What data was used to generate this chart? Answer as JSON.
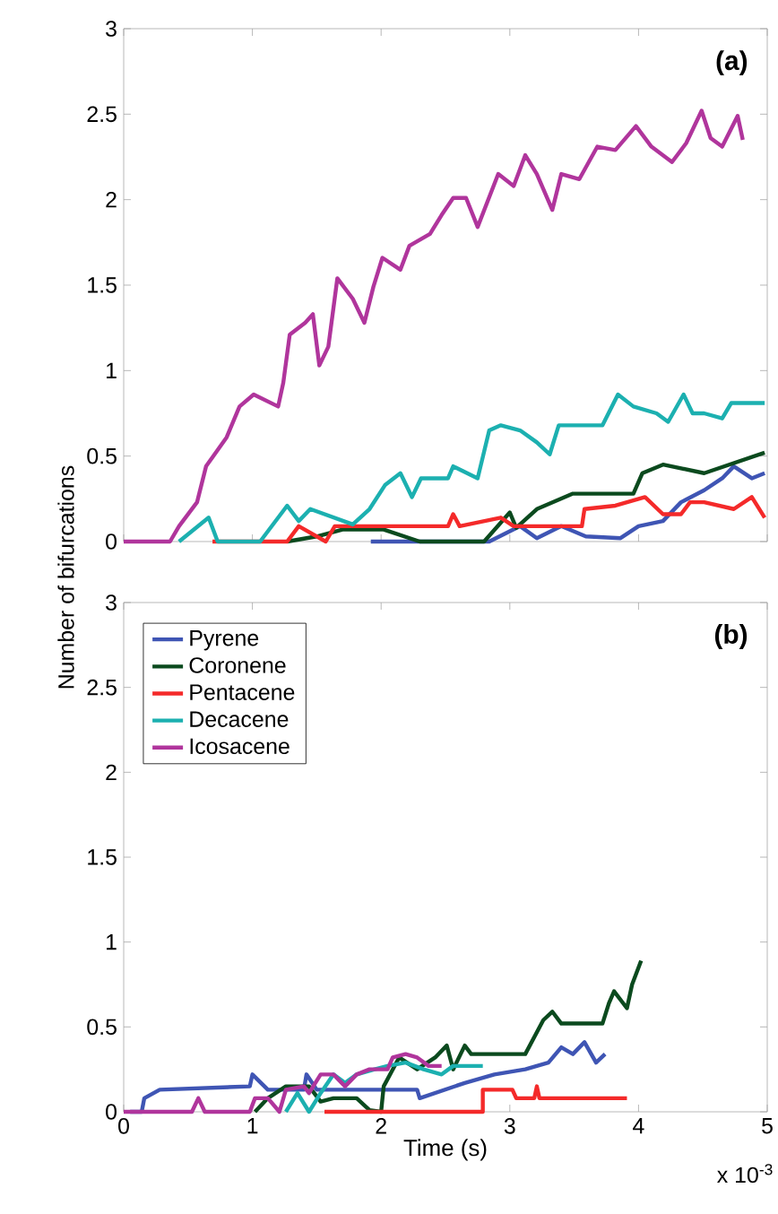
{
  "chart_data": [
    {
      "type": "line",
      "ylabel": "Number of bifurcations",
      "annotations": [
        "(a)"
      ],
      "xlim": [
        0,
        5
      ],
      "ylim": [
        0,
        3
      ],
      "xticks": [
        0,
        1,
        2,
        3,
        4,
        5
      ],
      "yticks": [
        0,
        0.5,
        1,
        1.5,
        2,
        2.5,
        3
      ],
      "tick_labels": "y",
      "marker": "none",
      "line_style": "solid",
      "series": [
        {
          "color": "#3f55b4",
          "x": [
            1.92,
            2.84,
            3.08,
            3.21,
            3.4,
            3.59,
            3.86,
            4.0,
            4.19,
            4.33,
            4.51,
            4.65,
            4.74,
            4.88,
            4.98
          ],
          "values": [
            0,
            0,
            0.09,
            0.02,
            0.09,
            0.03,
            0.02,
            0.09,
            0.12,
            0.23,
            0.3,
            0.37,
            0.44,
            0.37,
            0.4
          ]
        },
        {
          "color": "#0b4a1e",
          "x": [
            1.27,
            1.5,
            1.7,
            2.02,
            2.3,
            2.8,
            3.0,
            3.05,
            3.21,
            3.49,
            3.96,
            4.03,
            4.19,
            4.51,
            4.98
          ],
          "values": [
            0,
            0.03,
            0.07,
            0.07,
            0,
            0,
            0.17,
            0.08,
            0.19,
            0.28,
            0.28,
            0.4,
            0.45,
            0.4,
            0.52
          ]
        },
        {
          "color": "#f42a2a",
          "x": [
            0.69,
            1.27,
            1.36,
            1.57,
            1.64,
            1.82,
            2.52,
            2.56,
            2.61,
            2.93,
            3.03,
            3.56,
            3.58,
            3.82,
            4.05,
            4.19,
            4.33,
            4.4,
            4.51,
            4.74,
            4.88,
            4.98
          ],
          "values": [
            0,
            0,
            0.09,
            0,
            0.09,
            0.09,
            0.09,
            0.16,
            0.09,
            0.14,
            0.09,
            0.09,
            0.19,
            0.21,
            0.26,
            0.16,
            0.16,
            0.23,
            0.23,
            0.19,
            0.26,
            0.14
          ]
        },
        {
          "color": "#1cb0b0",
          "x": [
            0.43,
            0.66,
            0.73,
            1.06,
            1.27,
            1.36,
            1.45,
            1.78,
            1.91,
            2.03,
            2.15,
            2.24,
            2.31,
            2.52,
            2.56,
            2.75,
            2.84,
            2.93,
            3.08,
            3.21,
            3.31,
            3.38,
            3.59,
            3.72,
            3.84,
            3.96,
            4.14,
            4.23,
            4.35,
            4.42,
            4.51,
            4.65,
            4.72,
            4.98
          ],
          "values": [
            0,
            0.14,
            0,
            0,
            0.21,
            0.12,
            0.19,
            0.1,
            0.19,
            0.33,
            0.4,
            0.26,
            0.37,
            0.37,
            0.44,
            0.37,
            0.65,
            0.68,
            0.65,
            0.58,
            0.51,
            0.68,
            0.68,
            0.68,
            0.86,
            0.79,
            0.75,
            0.7,
            0.86,
            0.75,
            0.75,
            0.72,
            0.81,
            0.81
          ]
        },
        {
          "color": "#b0359c",
          "x": [
            0,
            0.36,
            0.43,
            0.57,
            0.64,
            0.8,
            0.9,
            1.01,
            1.2,
            1.24,
            1.29,
            1.41,
            1.47,
            1.52,
            1.59,
            1.66,
            1.78,
            1.87,
            1.94,
            2.01,
            2.15,
            2.22,
            2.38,
            2.47,
            2.56,
            2.66,
            2.75,
            2.91,
            3.03,
            3.12,
            3.21,
            3.33,
            3.4,
            3.54,
            3.68,
            3.82,
            3.98,
            4.1,
            4.26,
            4.37,
            4.49,
            4.56,
            4.65,
            4.77,
            4.81
          ],
          "values": [
            0,
            0,
            0.09,
            0.23,
            0.44,
            0.61,
            0.79,
            0.86,
            0.79,
            0.93,
            1.21,
            1.28,
            1.33,
            1.03,
            1.14,
            1.54,
            1.42,
            1.28,
            1.49,
            1.66,
            1.59,
            1.73,
            1.8,
            1.91,
            2.01,
            2.01,
            1.84,
            2.15,
            2.08,
            2.26,
            2.15,
            1.94,
            2.15,
            2.12,
            2.31,
            2.29,
            2.43,
            2.31,
            2.22,
            2.33,
            2.52,
            2.36,
            2.31,
            2.49,
            2.35
          ]
        }
      ]
    },
    {
      "type": "line",
      "xlabel": "Time (s)",
      "annotations": [
        "(b)",
        "x 10$^{-3}$"
      ],
      "xlim": [
        0,
        5
      ],
      "ylim": [
        0,
        3
      ],
      "xticks": [
        0,
        1,
        2,
        3,
        4,
        5
      ],
      "yticks": [
        0,
        0.5,
        1,
        1.5,
        2,
        2.5,
        3
      ],
      "legend": "top left",
      "marker": "none",
      "line_style": "solid",
      "series": [
        {
          "name": "Pyrene",
          "color": "#3f55b4",
          "x": [
            0.05,
            0.14,
            0.16,
            0.28,
            0.98,
            1.0,
            1.12,
            1.4,
            1.42,
            1.5,
            2.28,
            2.3,
            2.65,
            2.88,
            3.12,
            3.3,
            3.4,
            3.49,
            3.58,
            3.67,
            3.74
          ],
          "values": [
            0,
            0,
            0.08,
            0.13,
            0.15,
            0.22,
            0.13,
            0.13,
            0.22,
            0.13,
            0.13,
            0.08,
            0.17,
            0.22,
            0.25,
            0.29,
            0.38,
            0.34,
            0.41,
            0.29,
            0.34
          ]
        },
        {
          "name": "Coronene",
          "color": "#0b4a1e",
          "x": [
            1.02,
            1.12,
            1.26,
            1.44,
            1.53,
            1.63,
            1.81,
            1.91,
            2.0,
            2.02,
            2.14,
            2.28,
            2.42,
            2.51,
            2.56,
            2.65,
            2.7,
            3.12,
            3.26,
            3.33,
            3.4,
            3.72,
            3.77,
            3.81,
            3.91,
            3.95,
            4.02
          ],
          "values": [
            0,
            0.08,
            0.15,
            0.15,
            0.06,
            0.08,
            0.08,
            0.01,
            0,
            0.15,
            0.32,
            0.25,
            0.32,
            0.39,
            0.25,
            0.39,
            0.34,
            0.34,
            0.54,
            0.59,
            0.52,
            0.52,
            0.64,
            0.71,
            0.61,
            0.75,
            0.89
          ]
        },
        {
          "name": "Pentacene",
          "color": "#f42a2a",
          "x": [
            1.56,
            2.79,
            2.79,
            3.02,
            3.05,
            3.19,
            3.21,
            3.23,
            3.91
          ],
          "values": [
            0,
            0,
            0.13,
            0.13,
            0.08,
            0.08,
            0.15,
            0.08,
            0.08
          ]
        },
        {
          "name": "Decacene",
          "color": "#1cb0b0",
          "x": [
            1.26,
            1.35,
            1.44,
            1.53,
            1.63,
            1.72,
            1.81,
            1.95,
            2.05,
            2.19,
            2.33,
            2.47,
            2.56,
            2.79
          ],
          "values": [
            0,
            0.11,
            0,
            0.11,
            0.22,
            0.17,
            0.22,
            0.25,
            0.27,
            0.29,
            0.25,
            0.22,
            0.27,
            0.27
          ]
        },
        {
          "name": "Icosacene",
          "color": "#b0359c",
          "x": [
            0,
            0.53,
            0.58,
            0.63,
            0.98,
            1.02,
            1.12,
            1.21,
            1.26,
            1.4,
            1.44,
            1.53,
            1.63,
            1.72,
            1.81,
            1.91,
            2.05,
            2.09,
            2.19,
            2.28,
            2.37,
            2.47
          ],
          "values": [
            0,
            0,
            0.08,
            0,
            0,
            0.08,
            0.08,
            0,
            0.13,
            0.15,
            0.11,
            0.22,
            0.22,
            0.15,
            0.22,
            0.25,
            0.25,
            0.32,
            0.34,
            0.32,
            0.27,
            0.27
          ]
        }
      ]
    }
  ]
}
